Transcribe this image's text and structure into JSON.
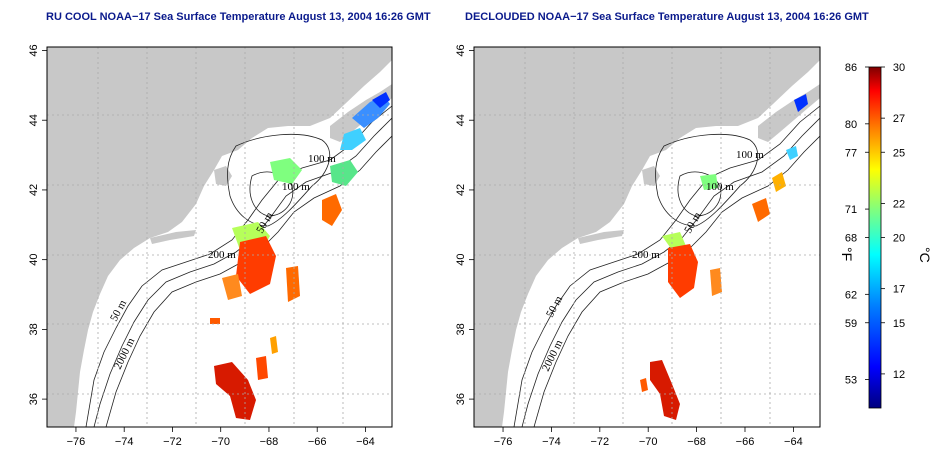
{
  "maps": [
    {
      "title": "RU COOL NOAA−17 Sea Surface Temperature August 13, 2004 16:26 GMT",
      "contour_labels": [
        "100 m",
        "100 m",
        "50 m",
        "200 m",
        "50 m",
        "2000 m"
      ]
    },
    {
      "title": "DECLOUDED NOAA−17 Sea Surface Temperature August 13, 2004 16:26 GMT",
      "contour_labels": [
        "100 m",
        "100 m",
        "50 m",
        "200 m",
        "50 m",
        "2000 m"
      ]
    }
  ],
  "axes": {
    "x_ticks": [
      "−76",
      "−74",
      "−72",
      "−70",
      "−68",
      "−66",
      "−64"
    ],
    "x_values": [
      -76,
      -74,
      -72,
      -70,
      -68,
      -66,
      -64
    ],
    "y_ticks": [
      "36",
      "38",
      "40",
      "42",
      "44",
      "46"
    ],
    "y_values": [
      36,
      38,
      40,
      42,
      44,
      46
    ],
    "xlim": [
      -77.2,
      -62.9
    ],
    "ylim": [
      35.2,
      46.1
    ]
  },
  "colorbar": {
    "fahrenheit_ticks": [
      "86",
      "80",
      "77",
      "71",
      "68",
      "62",
      "59",
      "53"
    ],
    "fahrenheit_values": [
      86,
      80,
      77,
      71,
      68,
      62,
      59,
      53
    ],
    "celsius_ticks": [
      "30",
      "27",
      "25",
      "22",
      "20",
      "17",
      "15",
      "12"
    ],
    "celsius_values": [
      30,
      27,
      25,
      22,
      20,
      17,
      15,
      12
    ],
    "range_c": [
      10,
      30
    ],
    "unit_f": "°F",
    "unit_c": "°C",
    "colors": [
      "#00007f",
      "#0000ff",
      "#007fff",
      "#00ffff",
      "#7fff7f",
      "#ffff00",
      "#ff7f00",
      "#ff0000",
      "#7f0000"
    ]
  },
  "colors": {
    "land": "#c8c8c8",
    "water": "#ffffff",
    "title": "#0a1a8c",
    "grid": "#aaaaaa"
  }
}
